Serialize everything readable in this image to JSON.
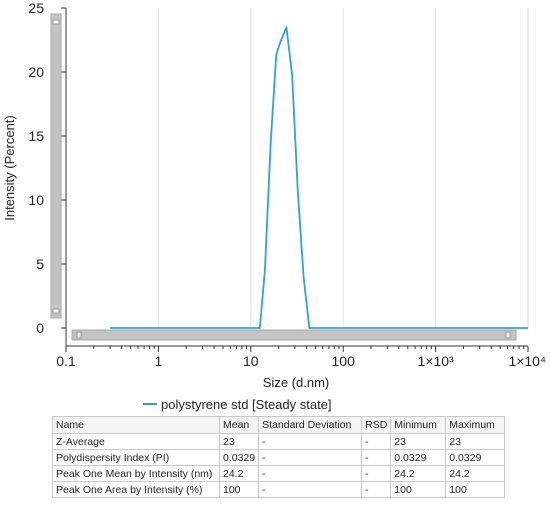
{
  "chart_data": {
    "type": "line",
    "x_scale": "log",
    "xlabel": "Size (d.nm)",
    "ylabel": "Intensity (Percent)",
    "xlim": [
      0.1,
      10000
    ],
    "ylim": [
      0,
      25
    ],
    "x_ticks": [
      "0.1",
      "1",
      "10",
      "100",
      "1×10³",
      "1×10⁴"
    ],
    "x_tick_values": [
      0.1,
      1,
      10,
      100,
      1000,
      10000
    ],
    "y_ticks": [
      "0",
      "5",
      "10",
      "15",
      "20",
      "25"
    ],
    "y_tick_values": [
      0,
      5,
      10,
      15,
      20,
      25
    ],
    "grid": "vertical",
    "legend_position": "bottom",
    "series": [
      {
        "name": "polystyrene std [Steady state]",
        "color": "#29a3e0",
        "x": [
          0.3,
          12.5,
          14.2,
          16.4,
          18.9,
          21.0,
          24.3,
          28.0,
          32.2,
          37.3,
          43.0,
          10000
        ],
        "y": [
          0,
          0,
          4.5,
          14.5,
          21.4,
          22.4,
          23.5,
          19.8,
          10.8,
          4.0,
          0,
          0
        ]
      }
    ]
  },
  "legend": {
    "entries": [
      {
        "label": "polystyrene std [Steady state]",
        "color": "#29a3e0"
      }
    ]
  },
  "stats_table": {
    "headers": [
      "Name",
      "Mean",
      "Standard Deviation",
      "RSD",
      "Minimum",
      "Maximum"
    ],
    "rows": [
      [
        "Z-Average",
        "23",
        "-",
        "-",
        "23",
        "23"
      ],
      [
        "Polydispersity Index (PI)",
        "0.0329",
        "-",
        "-",
        "0.0329",
        "0.0329"
      ],
      [
        "Peak One Mean by Intensity (nm)",
        "24.2",
        "-",
        "-",
        "24.2",
        "24.2"
      ],
      [
        "Peak One Area by Intensity (%)",
        "100",
        "-",
        "-",
        "100",
        "100"
      ]
    ]
  }
}
